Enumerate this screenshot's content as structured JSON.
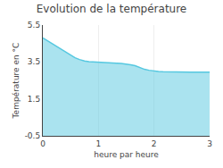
{
  "chart_data": {
    "type": "area",
    "title": "Evolution de la température",
    "x_label": "heure par heure",
    "y_label": "Température en °C",
    "x": [
      0,
      0.08,
      0.16,
      0.25,
      0.33,
      0.41,
      0.5,
      0.58,
      0.66,
      0.75,
      0.83,
      0.91,
      1.0,
      1.08,
      1.16,
      1.25,
      1.33,
      1.41,
      1.5,
      1.58,
      1.66,
      1.75,
      1.83,
      1.91,
      2.0,
      2.08,
      2.16,
      2.25,
      2.33,
      2.41,
      2.5,
      2.58,
      2.66,
      2.75,
      2.83,
      2.91,
      3.0
    ],
    "values": [
      4.8,
      4.65,
      4.5,
      4.33,
      4.18,
      4.02,
      3.87,
      3.73,
      3.63,
      3.55,
      3.52,
      3.5,
      3.48,
      3.47,
      3.46,
      3.44,
      3.43,
      3.42,
      3.4,
      3.35,
      3.3,
      3.2,
      3.1,
      3.05,
      3.0,
      2.98,
      2.97,
      2.96,
      2.95,
      2.95,
      2.95,
      2.95,
      2.95,
      2.95,
      2.95,
      2.95,
      2.95
    ],
    "color": "#56c8e0",
    "xlim": [
      0,
      3
    ],
    "xticks": [
      0,
      1,
      2,
      3
    ],
    "ylim": [
      -0.5,
      5.5
    ],
    "yticks": [
      -0.5,
      1.5,
      3.5,
      5.5
    ],
    "grid": "x"
  }
}
